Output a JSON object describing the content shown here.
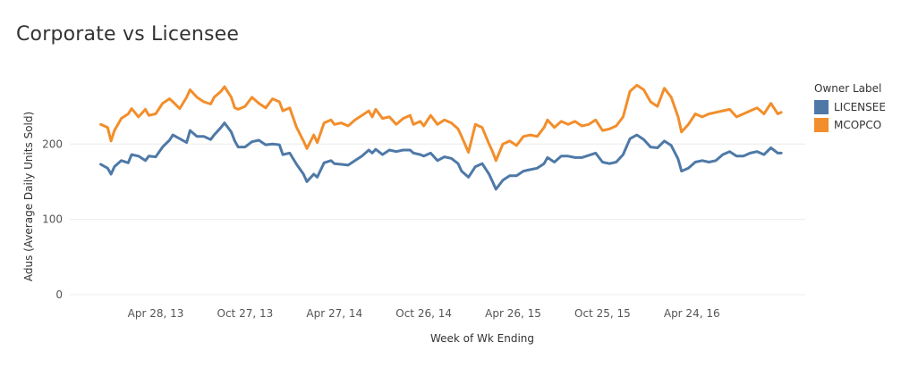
{
  "chart_data": {
    "type": "line",
    "title": "Corporate vs Licensee",
    "xlabel": "Week of Wk Ending",
    "ylabel": "Adus (Average Daily Units Sold)",
    "ylim": [
      0,
      320
    ],
    "yticks": [
      0,
      100,
      200
    ],
    "xlim": [
      "2012-11-04",
      "2016-12-11"
    ],
    "xticks": [
      {
        "date": "2013-04-28",
        "label": "Apr 28, 13"
      },
      {
        "date": "2013-10-27",
        "label": "Oct 27, 13"
      },
      {
        "date": "2014-04-27",
        "label": "Apr 27, 14"
      },
      {
        "date": "2014-10-26",
        "label": "Oct 26, 14"
      },
      {
        "date": "2015-04-26",
        "label": "Apr 26, 15"
      },
      {
        "date": "2015-10-25",
        "label": "Oct 25, 15"
      },
      {
        "date": "2016-04-24",
        "label": "Apr 24, 16"
      }
    ],
    "grid": {
      "horizontal": true,
      "vertical": false
    },
    "legend": {
      "title": "Owner Label",
      "position": "right"
    },
    "series": [
      {
        "name": "LICENSEE",
        "color": "#4e79a7",
        "points": [
          [
            "2013-01-06",
            173
          ],
          [
            "2013-01-20",
            168
          ],
          [
            "2013-01-27",
            160
          ],
          [
            "2013-02-03",
            170
          ],
          [
            "2013-02-17",
            178
          ],
          [
            "2013-03-03",
            175
          ],
          [
            "2013-03-10",
            186
          ],
          [
            "2013-03-24",
            184
          ],
          [
            "2013-04-07",
            178
          ],
          [
            "2013-04-14",
            184
          ],
          [
            "2013-04-28",
            183
          ],
          [
            "2013-05-12",
            196
          ],
          [
            "2013-05-26",
            205
          ],
          [
            "2013-06-02",
            212
          ],
          [
            "2013-06-16",
            207
          ],
          [
            "2013-06-30",
            202
          ],
          [
            "2013-07-07",
            218
          ],
          [
            "2013-07-21",
            210
          ],
          [
            "2013-08-04",
            210
          ],
          [
            "2013-08-18",
            206
          ],
          [
            "2013-08-25",
            212
          ],
          [
            "2013-09-08",
            222
          ],
          [
            "2013-09-15",
            228
          ],
          [
            "2013-09-29",
            216
          ],
          [
            "2013-10-06",
            204
          ],
          [
            "2013-10-13",
            196
          ],
          [
            "2013-10-27",
            196
          ],
          [
            "2013-11-10",
            203
          ],
          [
            "2013-11-24",
            205
          ],
          [
            "2013-12-08",
            199
          ],
          [
            "2013-12-22",
            200
          ],
          [
            "2014-01-05",
            199
          ],
          [
            "2014-01-12",
            186
          ],
          [
            "2014-01-26",
            188
          ],
          [
            "2014-02-09",
            173
          ],
          [
            "2014-02-23",
            160
          ],
          [
            "2014-03-02",
            150
          ],
          [
            "2014-03-16",
            160
          ],
          [
            "2014-03-23",
            156
          ],
          [
            "2014-04-06",
            175
          ],
          [
            "2014-04-20",
            178
          ],
          [
            "2014-04-27",
            174
          ],
          [
            "2014-05-11",
            173
          ],
          [
            "2014-05-25",
            172
          ],
          [
            "2014-06-08",
            178
          ],
          [
            "2014-06-22",
            184
          ],
          [
            "2014-07-06",
            192
          ],
          [
            "2014-07-13",
            188
          ],
          [
            "2014-07-20",
            193
          ],
          [
            "2014-08-03",
            186
          ],
          [
            "2014-08-17",
            192
          ],
          [
            "2014-08-31",
            190
          ],
          [
            "2014-09-14",
            192
          ],
          [
            "2014-09-28",
            192
          ],
          [
            "2014-10-05",
            188
          ],
          [
            "2014-10-19",
            186
          ],
          [
            "2014-10-26",
            184
          ],
          [
            "2014-11-09",
            188
          ],
          [
            "2014-11-23",
            178
          ],
          [
            "2014-12-07",
            183
          ],
          [
            "2014-12-21",
            181
          ],
          [
            "2015-01-04",
            174
          ],
          [
            "2015-01-11",
            164
          ],
          [
            "2015-01-25",
            156
          ],
          [
            "2015-02-08",
            170
          ],
          [
            "2015-02-22",
            174
          ],
          [
            "2015-03-08",
            160
          ],
          [
            "2015-03-15",
            150
          ],
          [
            "2015-03-22",
            140
          ],
          [
            "2015-04-05",
            152
          ],
          [
            "2015-04-19",
            158
          ],
          [
            "2015-05-03",
            158
          ],
          [
            "2015-05-17",
            164
          ],
          [
            "2015-05-31",
            166
          ],
          [
            "2015-06-14",
            168
          ],
          [
            "2015-06-28",
            174
          ],
          [
            "2015-07-05",
            182
          ],
          [
            "2015-07-19",
            176
          ],
          [
            "2015-08-02",
            184
          ],
          [
            "2015-08-16",
            184
          ],
          [
            "2015-08-30",
            182
          ],
          [
            "2015-09-13",
            182
          ],
          [
            "2015-09-27",
            185
          ],
          [
            "2015-10-11",
            188
          ],
          [
            "2015-10-25",
            176
          ],
          [
            "2015-11-08",
            174
          ],
          [
            "2015-11-22",
            176
          ],
          [
            "2015-12-06",
            186
          ],
          [
            "2015-12-20",
            207
          ],
          [
            "2016-01-03",
            212
          ],
          [
            "2016-01-17",
            206
          ],
          [
            "2016-01-31",
            196
          ],
          [
            "2016-02-14",
            195
          ],
          [
            "2016-02-28",
            204
          ],
          [
            "2016-03-13",
            198
          ],
          [
            "2016-03-27",
            180
          ],
          [
            "2016-04-03",
            164
          ],
          [
            "2016-04-17",
            168
          ],
          [
            "2016-05-01",
            176
          ],
          [
            "2016-05-15",
            178
          ],
          [
            "2016-05-29",
            176
          ],
          [
            "2016-06-12",
            178
          ],
          [
            "2016-06-26",
            186
          ],
          [
            "2016-07-10",
            190
          ],
          [
            "2016-07-24",
            184
          ],
          [
            "2016-08-07",
            184
          ],
          [
            "2016-08-21",
            188
          ],
          [
            "2016-09-04",
            190
          ],
          [
            "2016-09-18",
            186
          ],
          [
            "2016-10-02",
            195
          ],
          [
            "2016-10-16",
            188
          ],
          [
            "2016-10-23",
            188
          ]
        ]
      },
      {
        "name": "MCOPCO",
        "color": "#f28e2b",
        "points": [
          [
            "2013-01-06",
            226
          ],
          [
            "2013-01-20",
            222
          ],
          [
            "2013-01-27",
            204
          ],
          [
            "2013-02-03",
            218
          ],
          [
            "2013-02-17",
            234
          ],
          [
            "2013-03-03",
            240
          ],
          [
            "2013-03-10",
            247
          ],
          [
            "2013-03-24",
            236
          ],
          [
            "2013-04-07",
            246
          ],
          [
            "2013-04-14",
            238
          ],
          [
            "2013-04-28",
            240
          ],
          [
            "2013-05-12",
            254
          ],
          [
            "2013-05-26",
            260
          ],
          [
            "2013-06-02",
            256
          ],
          [
            "2013-06-16",
            247
          ],
          [
            "2013-06-30",
            262
          ],
          [
            "2013-07-07",
            272
          ],
          [
            "2013-07-21",
            262
          ],
          [
            "2013-08-04",
            256
          ],
          [
            "2013-08-18",
            253
          ],
          [
            "2013-08-25",
            262
          ],
          [
            "2013-09-08",
            270
          ],
          [
            "2013-09-15",
            276
          ],
          [
            "2013-09-29",
            262
          ],
          [
            "2013-10-06",
            248
          ],
          [
            "2013-10-13",
            246
          ],
          [
            "2013-10-27",
            250
          ],
          [
            "2013-11-10",
            262
          ],
          [
            "2013-11-24",
            254
          ],
          [
            "2013-12-08",
            248
          ],
          [
            "2013-12-22",
            260
          ],
          [
            "2014-01-05",
            256
          ],
          [
            "2014-01-12",
            244
          ],
          [
            "2014-01-26",
            248
          ],
          [
            "2014-02-09",
            222
          ],
          [
            "2014-02-23",
            204
          ],
          [
            "2014-03-02",
            194
          ],
          [
            "2014-03-16",
            212
          ],
          [
            "2014-03-23",
            202
          ],
          [
            "2014-04-06",
            228
          ],
          [
            "2014-04-20",
            232
          ],
          [
            "2014-04-27",
            226
          ],
          [
            "2014-05-11",
            228
          ],
          [
            "2014-05-25",
            224
          ],
          [
            "2014-06-08",
            232
          ],
          [
            "2014-06-22",
            238
          ],
          [
            "2014-07-06",
            244
          ],
          [
            "2014-07-13",
            236
          ],
          [
            "2014-07-20",
            246
          ],
          [
            "2014-08-03",
            234
          ],
          [
            "2014-08-17",
            236
          ],
          [
            "2014-08-31",
            226
          ],
          [
            "2014-09-14",
            234
          ],
          [
            "2014-09-28",
            238
          ],
          [
            "2014-10-05",
            226
          ],
          [
            "2014-10-19",
            230
          ],
          [
            "2014-10-26",
            224
          ],
          [
            "2014-11-09",
            238
          ],
          [
            "2014-11-23",
            226
          ],
          [
            "2014-12-07",
            232
          ],
          [
            "2014-12-21",
            228
          ],
          [
            "2015-01-04",
            220
          ],
          [
            "2015-01-11",
            210
          ],
          [
            "2015-01-25",
            189
          ],
          [
            "2015-02-08",
            226
          ],
          [
            "2015-02-22",
            222
          ],
          [
            "2015-03-08",
            200
          ],
          [
            "2015-03-15",
            190
          ],
          [
            "2015-03-22",
            178
          ],
          [
            "2015-04-05",
            200
          ],
          [
            "2015-04-19",
            204
          ],
          [
            "2015-05-03",
            198
          ],
          [
            "2015-05-17",
            210
          ],
          [
            "2015-05-31",
            212
          ],
          [
            "2015-06-14",
            210
          ],
          [
            "2015-06-28",
            222
          ],
          [
            "2015-07-05",
            232
          ],
          [
            "2015-07-19",
            222
          ],
          [
            "2015-08-02",
            230
          ],
          [
            "2015-08-16",
            226
          ],
          [
            "2015-08-30",
            230
          ],
          [
            "2015-09-13",
            224
          ],
          [
            "2015-09-27",
            226
          ],
          [
            "2015-10-11",
            232
          ],
          [
            "2015-10-25",
            218
          ],
          [
            "2015-11-08",
            220
          ],
          [
            "2015-11-22",
            224
          ],
          [
            "2015-12-06",
            236
          ],
          [
            "2015-12-20",
            270
          ],
          [
            "2016-01-03",
            278
          ],
          [
            "2016-01-17",
            272
          ],
          [
            "2016-01-31",
            256
          ],
          [
            "2016-02-14",
            250
          ],
          [
            "2016-02-28",
            274
          ],
          [
            "2016-03-13",
            262
          ],
          [
            "2016-03-27",
            236
          ],
          [
            "2016-04-03",
            216
          ],
          [
            "2016-04-17",
            226
          ],
          [
            "2016-05-01",
            240
          ],
          [
            "2016-05-15",
            236
          ],
          [
            "2016-05-29",
            240
          ],
          [
            "2016-06-12",
            242
          ],
          [
            "2016-06-26",
            244
          ],
          [
            "2016-07-10",
            246
          ],
          [
            "2016-07-24",
            236
          ],
          [
            "2016-08-07",
            240
          ],
          [
            "2016-08-21",
            244
          ],
          [
            "2016-09-04",
            248
          ],
          [
            "2016-09-18",
            240
          ],
          [
            "2016-10-02",
            254
          ],
          [
            "2016-10-16",
            240
          ],
          [
            "2016-10-23",
            242
          ]
        ]
      }
    ]
  }
}
